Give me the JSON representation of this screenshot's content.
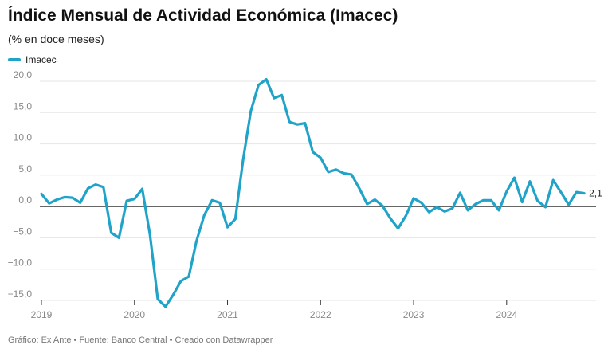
{
  "title": "Índice Mensual de Actividad Económica (Imacec)",
  "subtitle": "(% en doce meses)",
  "footer": "Gráfico: Ex Ante • Fuente: Banco Central • Creado con Datawrapper",
  "colors": {
    "series": "#1fa3c9",
    "grid": "#e6e6e6",
    "zero": "#333333"
  },
  "chart_data": {
    "type": "line",
    "series": [
      {
        "name": "Imacec",
        "x_start": "2019-01",
        "values": [
          2.0,
          0.5,
          1.1,
          1.5,
          1.4,
          0.6,
          2.9,
          3.5,
          3.1,
          -4.2,
          -5.0,
          0.9,
          1.2,
          2.8,
          -4.5,
          -14.8,
          -16.0,
          -14.1,
          -11.9,
          -11.2,
          -5.5,
          -1.4,
          1.0,
          0.6,
          -3.3,
          -2.0,
          7.4,
          15.2,
          19.4,
          20.3,
          17.3,
          17.8,
          13.5,
          13.1,
          13.3,
          8.7,
          7.8,
          5.5,
          5.9,
          5.3,
          5.1,
          2.9,
          0.4,
          1.1,
          0.1,
          -1.9,
          -3.5,
          -1.5,
          1.3,
          0.6,
          -0.9,
          -0.1,
          -0.8,
          -0.3,
          2.2,
          -0.6,
          0.4,
          1.0,
          1.0,
          -0.6,
          2.4,
          4.6,
          0.7,
          4.0,
          0.9,
          -0.1,
          4.2,
          2.3,
          0.3,
          2.3,
          2.1
        ]
      }
    ],
    "end_label": "2,1",
    "x_ticks": [
      "2019",
      "2020",
      "2021",
      "2022",
      "2023",
      "2024"
    ],
    "y_ticks": [
      "20,0",
      "15,0",
      "10,0",
      "5,0",
      "0,0",
      "−5,0",
      "−10,0",
      "−15,0"
    ],
    "y_tick_values": [
      20,
      15,
      10,
      5,
      0,
      -5,
      -10,
      -15
    ],
    "ylim": [
      -16.5,
      20.5
    ],
    "grid": true
  }
}
